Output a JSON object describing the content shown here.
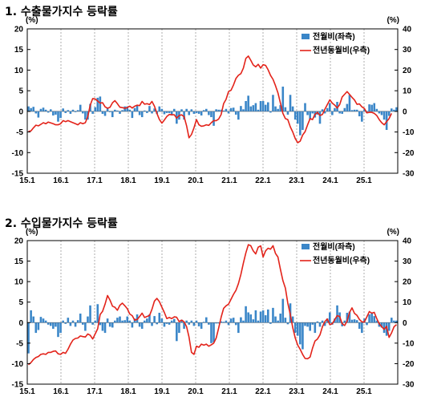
{
  "chart_data": [
    {
      "type": "bar+line",
      "title": "1. 수출물가지수 등락률",
      "left_unit": "(%)",
      "right_unit": "(%)",
      "y_left_lim": [
        -15,
        20
      ],
      "y_right_lim": [
        -30,
        40
      ],
      "y_left_ticks": [
        "20",
        "15",
        "10",
        "5",
        "0",
        "-5",
        "-10",
        "-15"
      ],
      "y_right_ticks": [
        "40",
        "30",
        "20",
        "10",
        "0",
        "-10",
        "-20",
        "-30"
      ],
      "x_ticks": [
        "15.1",
        "16.1",
        "17.1",
        "18.1",
        "19.1",
        "20.1",
        "21.1",
        "22.1",
        "23.1",
        "24.1",
        "25.1"
      ],
      "legend": {
        "bar": "전월비(좌측)",
        "line": "전년동월비(우측)"
      },
      "grid_vertical_dashed": true,
      "bar_color": "#3a86c8",
      "line_color": "#e3231a",
      "bar_series": {
        "name": "전월비(좌측)",
        "values": [
          1.2,
          0.8,
          1.1,
          -0.5,
          -1.5,
          0.6,
          0.9,
          0.4,
          -0.3,
          0.5,
          -1.0,
          -0.8,
          -2.5,
          -1.6,
          0.7,
          -0.4,
          0.3,
          -0.6,
          0.4,
          -0.2,
          0.3,
          1.6,
          -0.5,
          -2.0,
          -2.0,
          1.8,
          -0.6,
          1.0,
          3.3,
          3.6,
          -0.6,
          -1.1,
          0.7,
          -0.2,
          -1.4,
          0.4,
          0.2,
          -0.6,
          0.3,
          1.2,
          1.2,
          0.4,
          -1.6,
          0.8,
          1.4,
          -0.9,
          -1.4,
          0.2,
          -0.4,
          1.3,
          -0.5,
          0.7,
          -0.6,
          1.2,
          0.6,
          -0.7,
          -0.4,
          -0.4,
          -0.7,
          0.6,
          -3.0,
          -2.0,
          0.5,
          -2.0,
          0.6,
          -0.9,
          0.5,
          -0.6,
          -0.4,
          -0.6,
          -1.0,
          0.3,
          0.6,
          -0.9,
          -1.4,
          -3.5,
          0.5,
          0.4,
          0.4,
          0.2,
          0.6,
          -0.5,
          0.8,
          0.9,
          -0.8,
          -2.0,
          1.3,
          0.5,
          2.5,
          3.8,
          1.2,
          1.5,
          2.0,
          0.4,
          2.5,
          2.5,
          1.6,
          2.2,
          -0.3,
          4.0,
          1.2,
          0.6,
          1.5,
          6.0,
          1.0,
          -0.8,
          4.0,
          1.2,
          -2.0,
          -3.0,
          -5.8,
          -4.5,
          2.0,
          -0.9,
          -2.0,
          -0.5,
          -1.5,
          -0.8,
          -3.0,
          0.5,
          -0.5,
          0.8,
          2.0,
          -0.9,
          0.8,
          2.3,
          -0.5,
          -0.6,
          0.8,
          1.8,
          4.0,
          0.3,
          0.4,
          0.4,
          -1.2,
          -2.5,
          0.5,
          -0.4,
          1.7,
          1.6,
          2.0,
          0.6,
          -0.5,
          -0.9,
          -2.0,
          -4.5,
          -1.1,
          0.7,
          0.4,
          1.0
        ]
      },
      "line_series": {
        "name": "전년동월비(우측)",
        "values": [
          -9.7,
          -9.5,
          -8.0,
          -6.7,
          -7.0,
          -6.3,
          -5.5,
          -6.0,
          -5.2,
          -5.6,
          -6.0,
          -6.5,
          -6.5,
          -6.0,
          -4.5,
          -5.0,
          -4.5,
          -5.0,
          -5.5,
          -6.0,
          -6.5,
          -5.5,
          -6.0,
          -5.5,
          -2.5,
          3.0,
          6.2,
          6.0,
          5.0,
          4.0,
          4.2,
          2.2,
          1.5,
          2.0,
          4.2,
          5.2,
          3.7,
          2.0,
          1.8,
          1.5,
          1.8,
          2.5,
          1.6,
          2.5,
          3.0,
          2.8,
          4.8,
          3.5,
          3.7,
          3.3,
          4.8,
          2.5,
          -1.0,
          -4.0,
          -5.7,
          -4.2,
          -2.5,
          -1.5,
          -1.7,
          -1.6,
          -3.3,
          -2.0,
          -1.7,
          -2.6,
          -7.0,
          -12.8,
          -11.2,
          -8.0,
          -4.0,
          -6.5,
          -7.2,
          -7.0,
          -6.5,
          -6.8,
          -5.5,
          -4.5,
          -4.5,
          -3.7,
          -1.5,
          3.8,
          5.8,
          9.6,
          10.2,
          12.8,
          16.0,
          17.5,
          18.3,
          21.0,
          25.7,
          26.8,
          24.8,
          22.5,
          21.6,
          22.8,
          21.0,
          22.6,
          22.3,
          20.2,
          17.4,
          15.5,
          12.5,
          9.0,
          4.0,
          -1.0,
          -3.5,
          -4.0,
          -7.5,
          -10.0,
          -13.2,
          -15.2,
          -14.5,
          -11.5,
          -9.8,
          -6.5,
          -3.5,
          -4.0,
          -1.4,
          -0.5,
          -2.0,
          -1.5,
          1.0,
          3.3,
          5.6,
          4.0,
          3.0,
          1.6,
          3.3,
          7.0,
          8.3,
          9.6,
          8.2,
          6.8,
          5.5,
          3.4,
          3.6,
          2.2,
          1.4,
          -0.7,
          -0.5,
          -0.5,
          -1.0,
          -2.0,
          -4.0,
          -5.5,
          -6.5,
          -5.0,
          -3.5,
          -1.0
        ]
      }
    },
    {
      "type": "bar+line",
      "title": "2. 수입물가지수 등락률",
      "left_unit": "(%)",
      "right_unit": "(%)",
      "y_left_lim": [
        -15,
        20
      ],
      "y_right_lim": [
        -30,
        40
      ],
      "y_left_ticks": [
        "20",
        "15",
        "10",
        "5",
        "0",
        "-5",
        "-10",
        "-15"
      ],
      "y_right_ticks": [
        "40",
        "30",
        "20",
        "10",
        "0",
        "-10",
        "-20",
        "-30"
      ],
      "x_ticks": [
        "15.1",
        "16.1",
        "17.1",
        "18.1",
        "19.1",
        "20.1",
        "21.1",
        "22.1",
        "23.1",
        "24.1",
        "25.1"
      ],
      "legend": {
        "bar": "전월비(좌측)",
        "line": "전년동월비(우측)"
      },
      "grid_vertical_dashed": true,
      "bar_color": "#3a86c8",
      "line_color": "#e3231a",
      "bar_series": {
        "name": "전월비(좌측)",
        "values": [
          -7.5,
          3.0,
          1.5,
          -2.5,
          -1.8,
          1.4,
          1.0,
          0.5,
          -0.5,
          -0.8,
          -1.5,
          -1.0,
          -3.5,
          -2.5,
          0.5,
          -0.3,
          1.2,
          -0.8,
          0.5,
          -1.0,
          0.6,
          2.2,
          -0.5,
          -2.0,
          1.5,
          4.2,
          -0.5,
          0.5,
          4.5,
          -0.6,
          -2.0,
          -2.5,
          1.0,
          -1.0,
          -1.2,
          0.5,
          1.2,
          1.5,
          0.5,
          0.6,
          1.5,
          0.5,
          -1.2,
          1.0,
          2.0,
          -1.0,
          -1.5,
          0.5,
          1.0,
          2.0,
          -0.8,
          1.6,
          -0.4,
          2.4,
          1.0,
          -1.0,
          -0.3,
          -0.5,
          0.5,
          0.9,
          -4.5,
          -2.5,
          0.7,
          -1.5,
          0.5,
          -0.5,
          0.5,
          -0.8,
          0.5,
          -0.9,
          -1.5,
          0.2,
          1.3,
          -0.5,
          -5.0,
          -4.8,
          -0.2,
          -0.2,
          0.3,
          0.2,
          0.5,
          -0.6,
          1.0,
          1.2,
          -0.6,
          -2.5,
          1.3,
          0.5,
          4.0,
          2.5,
          2.0,
          0.8,
          3.0,
          0.5,
          2.7,
          3.0,
          1.8,
          3.2,
          -0.3,
          3.6,
          1.5,
          0.5,
          2.2,
          5.8,
          1.2,
          -0.4,
          4.7,
          1.5,
          -2.5,
          -3.2,
          -5.3,
          -6.5,
          -0.8,
          -1.0,
          -2.0,
          -0.5,
          -2.5,
          0.3,
          -1.0,
          0.5,
          -0.8,
          1.0,
          2.5,
          -0.5,
          1.0,
          4.2,
          2.5,
          -0.9,
          0.5,
          2.4,
          2.7,
          0.7,
          0.8,
          0.6,
          -1.5,
          -2.5,
          1.0,
          -0.6,
          2.0,
          2.5,
          1.6,
          0.5,
          -1.0,
          -1.2,
          -2.5,
          -3.2,
          -2.0,
          1.2,
          0.5,
          0.5
        ]
      },
      "line_series": {
        "name": "전년동월비(우측)",
        "values": [
          -20.5,
          -19.5,
          -18.0,
          -17.0,
          -16.5,
          -15.5,
          -15.2,
          -15.5,
          -14.5,
          -14.5,
          -14.0,
          -13.8,
          -15.2,
          -15.5,
          -14.5,
          -15.0,
          -13.0,
          -10.5,
          -8.5,
          -7.7,
          -7.5,
          -6.5,
          -6.8,
          -7.0,
          -5.5,
          -6.2,
          -8.0,
          -5.5,
          -3.0,
          4.0,
          5.5,
          9.0,
          13.2,
          11.0,
          8.0,
          7.5,
          6.0,
          8.5,
          9.5,
          8.2,
          6.8,
          4.2,
          3.4,
          1.2,
          1.5,
          3.0,
          4.6,
          2.5,
          3.0,
          3.5,
          6.5,
          10.5,
          11.8,
          10.2,
          7.5,
          5.0,
          2.0,
          2.5,
          2.0,
          2.8,
          2.6,
          0.5,
          1.2,
          0.4,
          -2.0,
          -7.0,
          -14.5,
          -15.5,
          -11.5,
          -12.0,
          -10.5,
          -11.0,
          -10.5,
          -11.5,
          -10.8,
          -10.0,
          -7.5,
          -2.6,
          2.7,
          7.0,
          8.2,
          9.0,
          11.4,
          13.8,
          15.8,
          19.0,
          23.5,
          29.0,
          34.0,
          38.0,
          37.5,
          35.0,
          33.5,
          36.8,
          37.4,
          32.0,
          35.0,
          36.3,
          35.8,
          37.5,
          33.8,
          32.0,
          26.0,
          20.5,
          16.8,
          9.5,
          4.0,
          -2.5,
          -7.5,
          -11.0,
          -13.0,
          -15.5,
          -17.5,
          -17.6,
          -16.8,
          -12.5,
          -9.0,
          -8.0,
          -6.0,
          -2.0,
          0.5,
          1.8,
          -1.0,
          -0.5,
          1.5,
          3.4,
          3.0,
          -0.5,
          -1.4,
          0.8,
          5.0,
          7.2,
          4.5,
          3.5,
          1.5,
          0.4,
          0.3,
          2.8,
          5.4,
          4.6,
          5.0,
          2.0,
          -0.5,
          -2.0,
          -3.3,
          -1.8,
          -7.2,
          -5.0,
          -2.0,
          -1.0
        ]
      }
    }
  ]
}
